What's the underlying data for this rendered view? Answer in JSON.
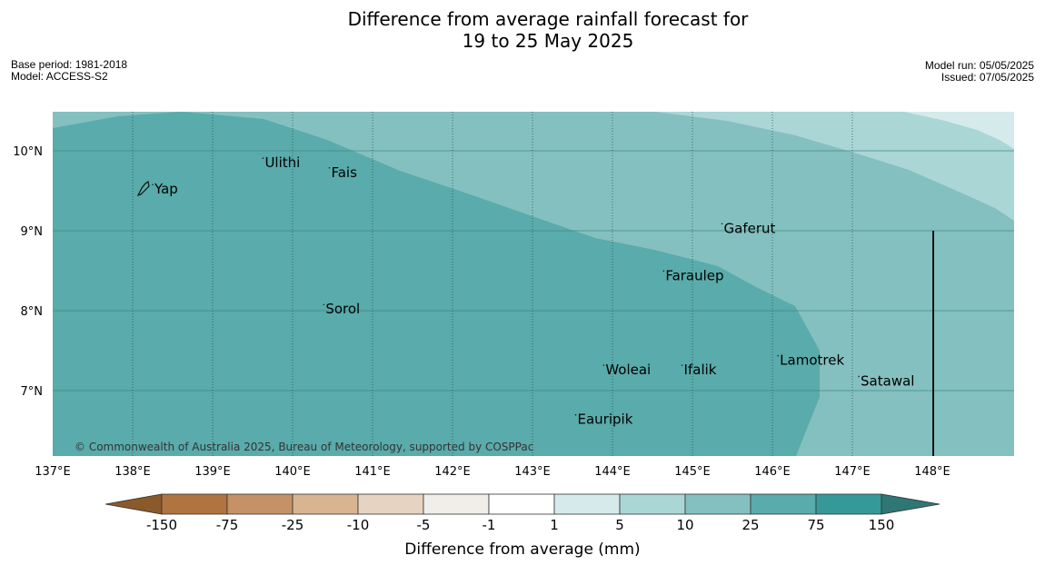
{
  "header": {
    "title_line1": "Difference from average rainfall forecast for",
    "title_line2": "19 to 25 May 2025",
    "base_period": "Base period: 1981-2018",
    "model": "Model: ACCESS-S2",
    "model_run": "Model run: 05/05/2025",
    "issued": "Issued: 07/05/2025"
  },
  "map": {
    "lon_labels": [
      "137°E",
      "138°E",
      "139°E",
      "140°E",
      "141°E",
      "142°E",
      "143°E",
      "144°E",
      "145°E",
      "146°E",
      "147°E",
      "148°E"
    ],
    "lat_labels": [
      "10°N",
      "9°N",
      "8°N",
      "7°N"
    ],
    "places": [
      {
        "name": "Yap",
        "lon": 138.25,
        "lat": 9.52
      },
      {
        "name": "Ulithi",
        "lon": 139.63,
        "lat": 9.85
      },
      {
        "name": "Fais",
        "lon": 140.46,
        "lat": 9.73
      },
      {
        "name": "Gaferut",
        "lon": 145.37,
        "lat": 9.03
      },
      {
        "name": "Faraulep",
        "lon": 144.64,
        "lat": 8.44
      },
      {
        "name": "Sorol",
        "lon": 140.39,
        "lat": 8.02
      },
      {
        "name": "Lamotrek",
        "lon": 146.07,
        "lat": 7.38
      },
      {
        "name": "Woleai",
        "lon": 143.89,
        "lat": 7.26
      },
      {
        "name": "Ifalik",
        "lon": 144.87,
        "lat": 7.26
      },
      {
        "name": "Satawal",
        "lon": 147.08,
        "lat": 7.12
      },
      {
        "name": "Eauripik",
        "lon": 143.54,
        "lat": 6.64
      }
    ],
    "copyright": "© Commonwealth of Australia 2025, Bureau of Meteorology, supported by COSPPac"
  },
  "colorbar": {
    "title": "Difference from average (mm)",
    "ticks": [
      "-150",
      "-75",
      "-25",
      "-10",
      "-5",
      "-1",
      "1",
      "5",
      "10",
      "25",
      "75",
      "150"
    ],
    "colors": [
      "#8a5a2b",
      "#b07440",
      "#c49266",
      "#d8b491",
      "#e6d3c2",
      "#f1eeea",
      "#ffffff",
      "#d5eaea",
      "#abd6d6",
      "#84c0bf",
      "#5aabab",
      "#35999a",
      "#2e7775"
    ]
  }
}
